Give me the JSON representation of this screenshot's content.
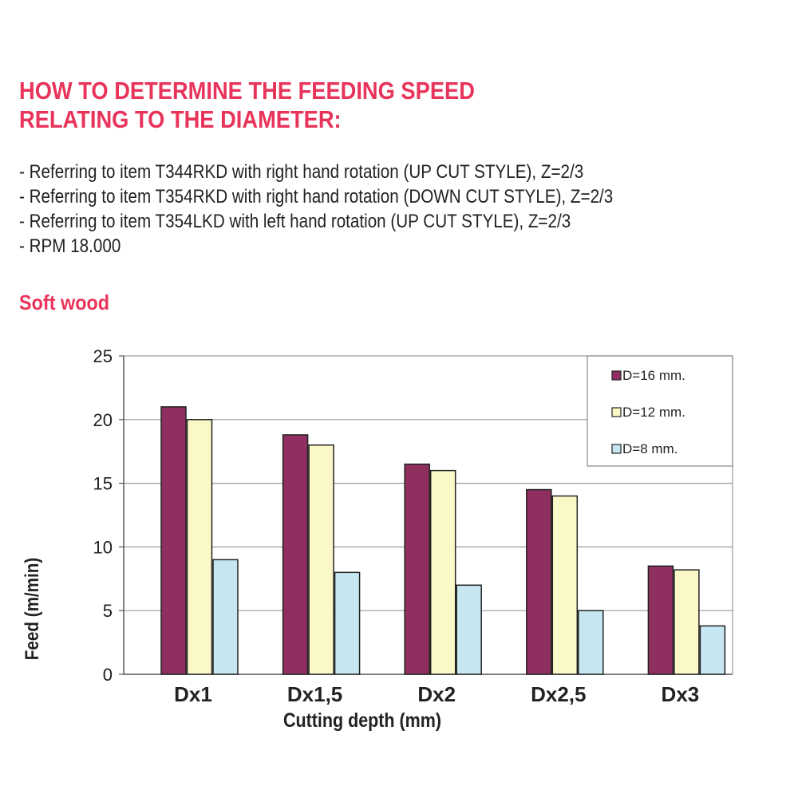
{
  "header": {
    "title_line1": "HOW TO DETERMINE THE FEEDING SPEED",
    "title_line2": "RELATING TO THE DIAMETER:"
  },
  "notes": [
    "- Referring to item T344RKD with right hand rotation (UP CUT STYLE), Z=2/3",
    "- Referring to item T354RKD with right hand rotation (DOWN CUT STYLE), Z=2/3",
    "- Referring to item T354LKD with left hand rotation (UP CUT STYLE), Z=2/3",
    "- RPM 18.000"
  ],
  "section": {
    "title": "Soft wood"
  },
  "colors": {
    "accent": "#e8345a",
    "series_16": "#8e2f5f",
    "series_12": "#fbf8c8",
    "series_8": "#c6e6f2"
  },
  "chart_data": {
    "type": "bar",
    "title": "Soft wood",
    "xlabel": "Cutting depth (mm)",
    "ylabel": "Feed (m/min)",
    "ylim": [
      0,
      25
    ],
    "yticks": [
      0,
      5,
      10,
      15,
      20,
      25
    ],
    "grid": true,
    "legend_position": "top-right",
    "categories": [
      "Dx1",
      "Dx1,5",
      "Dx2",
      "Dx2,5",
      "Dx3"
    ],
    "series": [
      {
        "name": "D=16 mm.",
        "color": "#8e2f5f",
        "values": [
          21,
          18.8,
          16.5,
          14.5,
          8.5
        ]
      },
      {
        "name": "D=12 mm.",
        "color": "#fbf8c8",
        "values": [
          20,
          18,
          16,
          14,
          8.2
        ]
      },
      {
        "name": "D=8 mm.",
        "color": "#c6e6f2",
        "values": [
          9,
          8,
          7,
          5,
          3.8
        ]
      }
    ]
  }
}
